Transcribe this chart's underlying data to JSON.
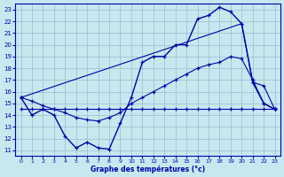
{
  "xlabel": "Graphe des températures (°c)",
  "bg_color": "#c8e8f0",
  "grid_color": "#99bbcc",
  "line_color": "#0000aa",
  "xlim": [
    -0.5,
    23.5
  ],
  "ylim": [
    10.5,
    23.5
  ],
  "yticks": [
    11,
    12,
    13,
    14,
    15,
    16,
    17,
    18,
    19,
    20,
    21,
    22,
    23
  ],
  "xticks": [
    0,
    1,
    2,
    3,
    4,
    5,
    6,
    7,
    8,
    9,
    10,
    11,
    12,
    13,
    14,
    15,
    16,
    17,
    18,
    19,
    20,
    21,
    22,
    23
  ],
  "s1_x": [
    0,
    1,
    2,
    3,
    4,
    5,
    6,
    7,
    8,
    9,
    10,
    11,
    12,
    13,
    14,
    15,
    16,
    17,
    18,
    19,
    20,
    21,
    22,
    23
  ],
  "s1_y": [
    15.5,
    14.0,
    14.5,
    14.0,
    12.2,
    11.2,
    11.7,
    11.2,
    11.1,
    13.3,
    15.5,
    18.5,
    19.0,
    19.0,
    20.0,
    20.0,
    22.2,
    22.5,
    23.2,
    22.8,
    21.8,
    16.8,
    15.0,
    14.5
  ],
  "s2_x": [
    0,
    1,
    2,
    3,
    4,
    5,
    6,
    7,
    8,
    9,
    10,
    11,
    12,
    13,
    14,
    15,
    16,
    17,
    18,
    19,
    20,
    21,
    22,
    23
  ],
  "s2_y": [
    14.5,
    14.5,
    14.5,
    14.5,
    14.5,
    14.5,
    14.5,
    14.5,
    14.5,
    14.5,
    14.5,
    14.5,
    14.5,
    14.5,
    14.5,
    14.5,
    14.5,
    14.5,
    14.5,
    14.5,
    14.5,
    14.5,
    14.5,
    14.5
  ],
  "s3_x": [
    0,
    20,
    21,
    22,
    23
  ],
  "s3_y": [
    15.5,
    21.8,
    16.8,
    16.5,
    14.5
  ],
  "s4_x": [
    0,
    1,
    2,
    3,
    4,
    5,
    6,
    7,
    8,
    9,
    10,
    11,
    12,
    13,
    14,
    15,
    16,
    17,
    18,
    19,
    20,
    21,
    22,
    23
  ],
  "s4_y": [
    15.5,
    15.2,
    14.8,
    14.5,
    14.2,
    13.8,
    13.6,
    13.5,
    13.8,
    14.2,
    15.0,
    15.5,
    16.0,
    16.5,
    17.0,
    17.5,
    18.0,
    18.3,
    18.5,
    19.0,
    18.8,
    17.0,
    15.0,
    14.5
  ]
}
